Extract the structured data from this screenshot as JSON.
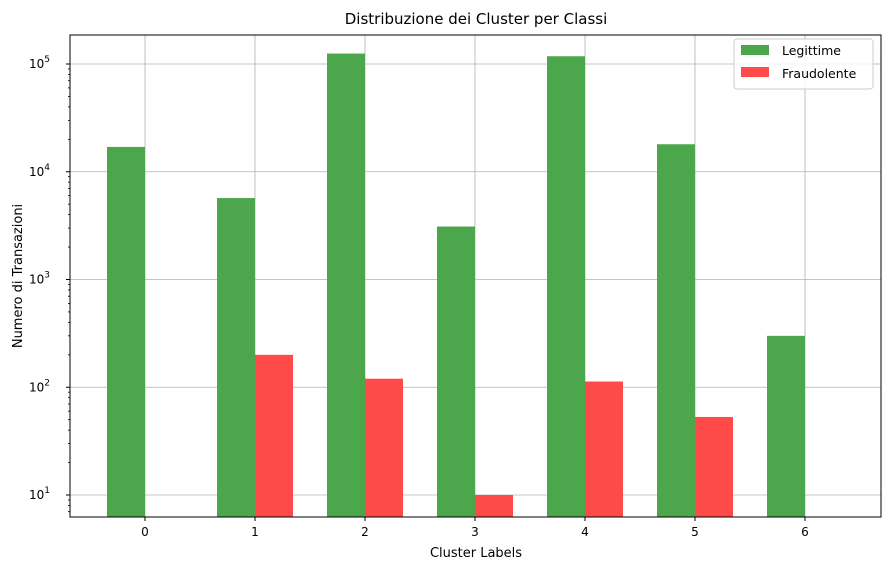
{
  "chart_data": {
    "type": "bar",
    "title": "Distribuzione dei Cluster per Classi",
    "xlabel": "Cluster Labels",
    "ylabel": "Numero di Transazioni",
    "yscale": "log",
    "ylim": [
      6,
      200000
    ],
    "grid": true,
    "legend_position": "top-right",
    "categories": [
      "0",
      "1",
      "2",
      "3",
      "4",
      "5",
      "6"
    ],
    "y_ticks": [
      {
        "base": "10",
        "exp": "1",
        "value": 10
      },
      {
        "base": "10",
        "exp": "2",
        "value": 100
      },
      {
        "base": "10",
        "exp": "3",
        "value": 1000
      },
      {
        "base": "10",
        "exp": "4",
        "value": 10000
      },
      {
        "base": "10",
        "exp": "5",
        "value": 100000
      }
    ],
    "series": [
      {
        "name": "Legittime",
        "color": "#4ca64c",
        "values": [
          17000,
          5700,
          125000,
          3100,
          118000,
          18000,
          300
        ]
      },
      {
        "name": "Fraudolente",
        "color": "#ff4a4a",
        "values": [
          null,
          200,
          120,
          10,
          113,
          53,
          null
        ]
      }
    ]
  }
}
